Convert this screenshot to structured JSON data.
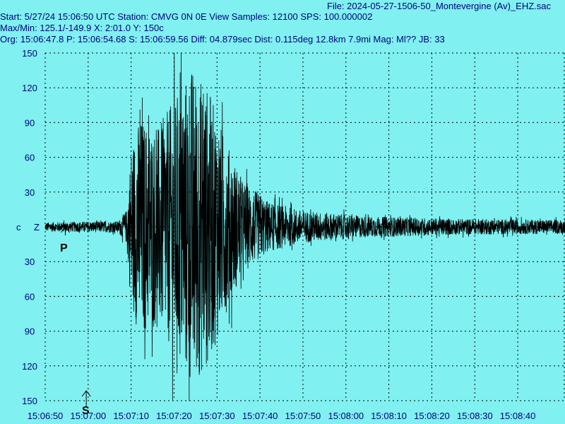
{
  "header": {
    "file_line": "File: 2024-05-27-1506-50_Montevergine (Av)_EHZ.sac",
    "start_line": "Start: 5/27/24 15:06:50 UTC Station: CMVG 0N 0E View Samples: 12100  SPS: 100.000002",
    "maxmin_line": "Max/Min: 125.1/-149.9 X: 2:01.0 Y: 150c",
    "org_line": "Org: 15:06:47.8 P: 15:06:54.68 S: 15:06:59.56 Diff: 04.879sec Dist: 0.115deg 12.8km 7.9mi  Mag: Ml?? JB: 33"
  },
  "channel": {
    "c_label": "c",
    "z_label": "Z"
  },
  "markers": {
    "p_label": "P",
    "s_label": "S"
  },
  "colors": {
    "background": "#80F0F0",
    "trace": "#000000",
    "grid": "#000000",
    "text": "#000080"
  },
  "chart_data": {
    "type": "line",
    "title": "",
    "xlabel": "",
    "ylabel": "",
    "grid": true,
    "x_range": [
      "15:06:50",
      "15:08:51"
    ],
    "y_range": [
      -150,
      150
    ],
    "x_ticks": [
      "15:06:50",
      "15:07:00",
      "15:07:10",
      "15:07:20",
      "15:07:30",
      "15:07:40",
      "15:07:50",
      "15:08:00",
      "15:08:10",
      "15:08:20",
      "15:08:30",
      "15:08:40"
    ],
    "y_tick_labels": [
      "150",
      "120",
      "90",
      "60",
      "30",
      "30",
      "60",
      "90",
      "120",
      "150"
    ],
    "y_tick_values": [
      150,
      120,
      90,
      60,
      30,
      -30,
      -60,
      -90,
      -120,
      -150
    ],
    "series": [
      {
        "max": 125.1,
        "min": -149.9,
        "envelope": [
          {
            "t": 0,
            "amp": 4
          },
          {
            "t": 17,
            "amp": 5
          },
          {
            "t": 19,
            "amp": 15
          },
          {
            "t": 20,
            "amp": 70
          },
          {
            "t": 22,
            "amp": 95
          },
          {
            "t": 26,
            "amp": 85
          },
          {
            "t": 30,
            "amp": 110
          },
          {
            "t": 34,
            "amp": 140
          },
          {
            "t": 38,
            "amp": 120
          },
          {
            "t": 42,
            "amp": 75
          },
          {
            "t": 46,
            "amp": 40
          },
          {
            "t": 52,
            "amp": 22
          },
          {
            "t": 60,
            "amp": 14
          },
          {
            "t": 75,
            "amp": 9
          },
          {
            "t": 95,
            "amp": 7
          },
          {
            "t": 121,
            "amp": 6
          }
        ]
      }
    ],
    "picks": {
      "P": "15:06:54.68",
      "S": "15:06:59.56"
    }
  }
}
